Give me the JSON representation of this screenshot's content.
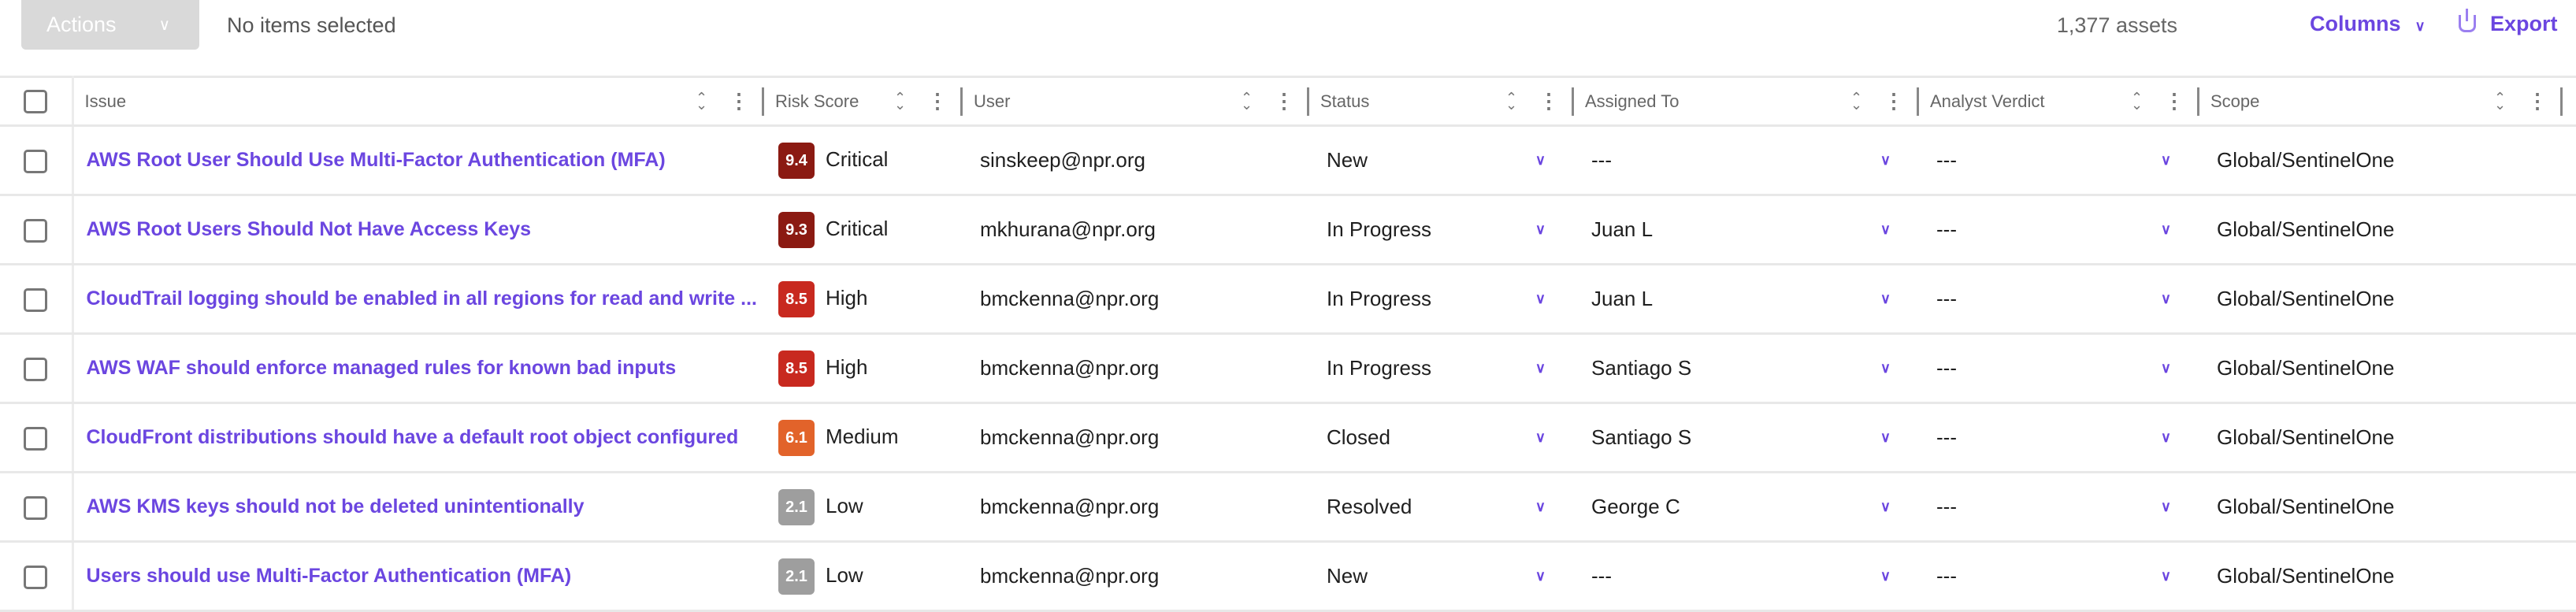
{
  "toolbar": {
    "actions_label": "Actions",
    "selection": "No items selected",
    "count": "1,377 assets",
    "columns_label": "Columns",
    "export_label": "Export"
  },
  "columns": [
    "Issue",
    "Risk Score",
    "User",
    "Status",
    "Assigned To",
    "Analyst Verdict",
    "Scope"
  ],
  "rows": [
    {
      "issue": "AWS Root User Should Use Multi-Factor Authentication (MFA)",
      "score": "9.4",
      "severity": "Critical",
      "color": "#8b1a12",
      "user": "sinskeep@npr.org",
      "status": "New",
      "assigned": "---",
      "verdict": "---",
      "scope": "Global/SentinelOne"
    },
    {
      "issue": "AWS Root Users Should Not Have Access Keys",
      "score": "9.3",
      "severity": "Critical",
      "color": "#8b1a12",
      "user": "mkhurana@npr.org",
      "status": "In Progress",
      "assigned": "Juan L",
      "verdict": "---",
      "scope": "Global/SentinelOne"
    },
    {
      "issue": "CloudTrail logging should be enabled in all regions for read and write ...",
      "score": "8.5",
      "severity": "High",
      "color": "#c8291f",
      "user": "bmckenna@npr.org",
      "status": "In Progress",
      "assigned": "Juan L",
      "verdict": "---",
      "scope": "Global/SentinelOne"
    },
    {
      "issue": "AWS WAF should enforce managed rules for known bad inputs",
      "score": "8.5",
      "severity": "High",
      "color": "#c8291f",
      "user": "bmckenna@npr.org",
      "status": "In Progress",
      "assigned": "Santiago S",
      "verdict": "---",
      "scope": "Global/SentinelOne"
    },
    {
      "issue": "CloudFront distributions should have a default root object configured",
      "score": "6.1",
      "severity": "Medium",
      "color": "#e2632a",
      "user": "bmckenna@npr.org",
      "status": "Closed",
      "assigned": "Santiago S",
      "verdict": "---",
      "scope": "Global/SentinelOne"
    },
    {
      "issue": "AWS KMS keys should not be deleted unintentionally",
      "score": "2.1",
      "severity": "Low",
      "color": "#9e9e9e",
      "user": "bmckenna@npr.org",
      "status": "Resolved",
      "assigned": "George C",
      "verdict": "---",
      "scope": "Global/SentinelOne"
    },
    {
      "issue": "Users should use Multi-Factor Authentication (MFA)",
      "score": "2.1",
      "severity": "Low",
      "color": "#9e9e9e",
      "user": "bmckenna@npr.org",
      "status": "New",
      "assigned": "---",
      "verdict": "---",
      "scope": "Global/SentinelOne"
    }
  ]
}
